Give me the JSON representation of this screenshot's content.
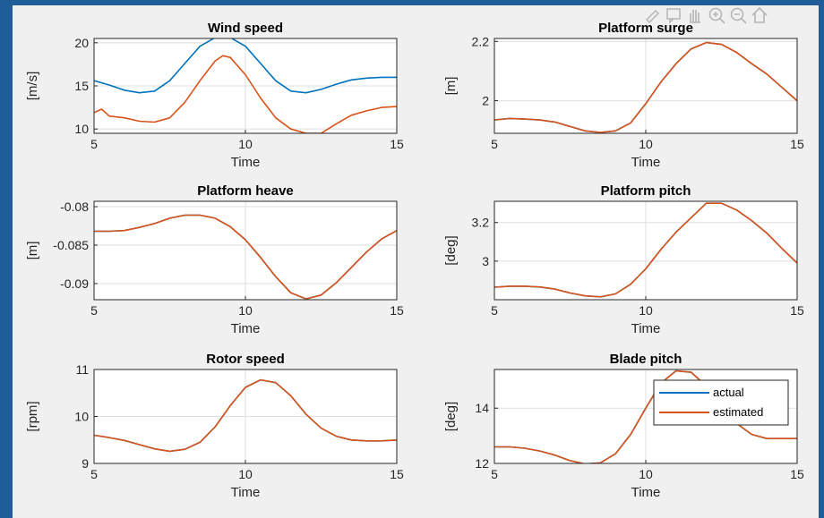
{
  "window": {
    "background": "#1f5d99",
    "figure_background": "#f0f0f0"
  },
  "colors": {
    "actual": "#0072bd",
    "estimated": "#d95319"
  },
  "toolbar": {
    "icons": [
      "brush-icon",
      "data-tip-icon",
      "pan-icon",
      "zoom-in-icon",
      "zoom-out-icon",
      "home-icon"
    ]
  },
  "legend": {
    "location": "northeast of Blade pitch",
    "entries": [
      "actual",
      "estimated"
    ]
  },
  "chart_data": [
    {
      "type": "line",
      "title": "Wind speed",
      "xlabel": "Time",
      "ylabel": "[m/s]",
      "xlim": [
        5,
        15
      ],
      "ylim": [
        9.5,
        20.5
      ],
      "xticks": [
        5,
        10,
        15
      ],
      "yticks": [
        10,
        15,
        20
      ],
      "grid": true,
      "series": [
        {
          "name": "actual",
          "x": [
            5,
            5.5,
            6,
            6.5,
            7,
            7.5,
            8,
            8.5,
            9,
            9.5,
            10,
            10.5,
            11,
            11.5,
            12,
            12.5,
            13,
            13.5,
            14,
            14.5,
            15
          ],
          "values": [
            15.6,
            15.1,
            14.5,
            14.2,
            14.4,
            15.6,
            17.6,
            19.6,
            20.6,
            20.6,
            19.6,
            17.6,
            15.6,
            14.4,
            14.2,
            14.6,
            15.2,
            15.7,
            15.9,
            16.0,
            16.0
          ]
        },
        {
          "name": "estimated",
          "x": [
            5,
            5.25,
            5.5,
            6,
            6.5,
            7,
            7.5,
            8,
            8.5,
            9,
            9.25,
            9.5,
            10,
            10.5,
            11,
            11.5,
            12,
            12.5,
            13,
            13.5,
            14,
            14.5,
            15
          ],
          "values": [
            11.9,
            12.3,
            11.5,
            11.3,
            10.9,
            10.8,
            11.3,
            13.1,
            15.6,
            17.9,
            18.5,
            18.3,
            16.3,
            13.6,
            11.3,
            10.0,
            9.5,
            9.5,
            10.6,
            11.6,
            12.1,
            12.5,
            12.6
          ]
        }
      ]
    },
    {
      "type": "line",
      "title": "Platform surge",
      "xlabel": "Time",
      "ylabel": "[m]",
      "xlim": [
        5,
        15
      ],
      "ylim": [
        1.89,
        2.21
      ],
      "xticks": [
        5,
        10,
        15
      ],
      "yticks": [
        2,
        2.2
      ],
      "grid": true,
      "series": [
        {
          "name": "actual",
          "x": [
            5,
            5.5,
            6,
            6.5,
            7,
            7.5,
            8,
            8.5,
            9,
            9.5,
            10,
            10.5,
            11,
            11.5,
            12,
            12.5,
            13,
            13.5,
            14,
            14.5,
            15
          ],
          "values": [
            1.935,
            1.94,
            1.938,
            1.935,
            1.928,
            1.913,
            1.898,
            1.893,
            1.898,
            1.925,
            1.99,
            2.063,
            2.125,
            2.175,
            2.196,
            2.19,
            2.163,
            2.125,
            2.09,
            2.045,
            2.0
          ]
        },
        {
          "name": "estimated",
          "x": [
            5,
            5.5,
            6,
            6.5,
            7,
            7.5,
            8,
            8.5,
            9,
            9.5,
            10,
            10.5,
            11,
            11.5,
            12,
            12.5,
            13,
            13.5,
            14,
            14.5,
            15
          ],
          "values": [
            1.935,
            1.94,
            1.938,
            1.935,
            1.928,
            1.913,
            1.898,
            1.893,
            1.898,
            1.925,
            1.99,
            2.063,
            2.125,
            2.175,
            2.196,
            2.19,
            2.163,
            2.125,
            2.09,
            2.045,
            2.0
          ]
        }
      ]
    },
    {
      "type": "line",
      "title": "Platform heave",
      "xlabel": "Time",
      "ylabel": "[m]",
      "xlim": [
        5,
        15
      ],
      "ylim": [
        -0.0921,
        -0.0793
      ],
      "xticks": [
        5,
        10,
        15
      ],
      "yticks": [
        -0.08,
        -0.085,
        -0.09
      ],
      "grid": true,
      "series": [
        {
          "name": "actual",
          "x": [
            5,
            5.5,
            6,
            6.5,
            7,
            7.5,
            8,
            8.5,
            9,
            9.5,
            10,
            10.5,
            11,
            11.5,
            12,
            12.5,
            13,
            13.5,
            14,
            14.5,
            15
          ],
          "values": [
            -0.0832,
            -0.0832,
            -0.0831,
            -0.0827,
            -0.0822,
            -0.0815,
            -0.0811,
            -0.0811,
            -0.0815,
            -0.0826,
            -0.0843,
            -0.0866,
            -0.0891,
            -0.0912,
            -0.092,
            -0.0915,
            -0.0899,
            -0.0879,
            -0.0859,
            -0.0842,
            -0.0831
          ]
        },
        {
          "name": "estimated",
          "x": [
            5,
            5.5,
            6,
            6.5,
            7,
            7.5,
            8,
            8.5,
            9,
            9.5,
            10,
            10.5,
            11,
            11.5,
            12,
            12.5,
            13,
            13.5,
            14,
            14.5,
            15
          ],
          "values": [
            -0.0832,
            -0.0832,
            -0.0831,
            -0.0827,
            -0.0822,
            -0.0815,
            -0.0811,
            -0.0811,
            -0.0815,
            -0.0826,
            -0.0843,
            -0.0866,
            -0.0891,
            -0.0912,
            -0.092,
            -0.0915,
            -0.0899,
            -0.0879,
            -0.0859,
            -0.0842,
            -0.0831
          ]
        }
      ]
    },
    {
      "type": "line",
      "title": "Platform pitch",
      "xlabel": "Time",
      "ylabel": "[deg]",
      "xlim": [
        5,
        15
      ],
      "ylim": [
        2.8,
        3.31
      ],
      "xticks": [
        5,
        10,
        15
      ],
      "yticks": [
        3,
        3.2
      ],
      "grid": true,
      "series": [
        {
          "name": "actual",
          "x": [
            5,
            5.5,
            6,
            6.5,
            7,
            7.5,
            8,
            8.5,
            9,
            9.5,
            10,
            10.5,
            11,
            11.5,
            12,
            12.5,
            13,
            13.5,
            14,
            14.5,
            15
          ],
          "values": [
            2.865,
            2.87,
            2.87,
            2.866,
            2.855,
            2.835,
            2.82,
            2.815,
            2.83,
            2.88,
            2.96,
            3.06,
            3.15,
            3.225,
            3.3,
            3.3,
            3.265,
            3.21,
            3.145,
            3.065,
            2.99
          ]
        },
        {
          "name": "estimated",
          "x": [
            5,
            5.5,
            6,
            6.5,
            7,
            7.5,
            8,
            8.5,
            9,
            9.5,
            10,
            10.5,
            11,
            11.5,
            12,
            12.5,
            13,
            13.5,
            14,
            14.5,
            15
          ],
          "values": [
            2.865,
            2.87,
            2.87,
            2.866,
            2.855,
            2.835,
            2.82,
            2.815,
            2.83,
            2.88,
            2.96,
            3.06,
            3.15,
            3.225,
            3.3,
            3.3,
            3.265,
            3.21,
            3.145,
            3.065,
            2.99
          ]
        }
      ]
    },
    {
      "type": "line",
      "title": "Rotor speed",
      "xlabel": "Time",
      "ylabel": "[rpm]",
      "xlim": [
        5,
        15
      ],
      "ylim": [
        9,
        11
      ],
      "xticks": [
        5,
        10,
        15
      ],
      "yticks": [
        9,
        10,
        11
      ],
      "grid": true,
      "series": [
        {
          "name": "actual",
          "x": [
            5,
            5.5,
            6,
            6.5,
            7,
            7.5,
            8,
            8.5,
            9,
            9.5,
            10,
            10.5,
            11,
            11.5,
            12,
            12.5,
            13,
            13.5,
            14,
            14.5,
            15
          ],
          "values": [
            9.6,
            9.55,
            9.49,
            9.4,
            9.31,
            9.26,
            9.3,
            9.45,
            9.78,
            10.23,
            10.62,
            10.78,
            10.72,
            10.44,
            10.05,
            9.75,
            9.58,
            9.5,
            9.48,
            9.48,
            9.5
          ]
        },
        {
          "name": "estimated",
          "x": [
            5,
            5.5,
            6,
            6.5,
            7,
            7.5,
            8,
            8.5,
            9,
            9.5,
            10,
            10.5,
            11,
            11.5,
            12,
            12.5,
            13,
            13.5,
            14,
            14.5,
            15
          ],
          "values": [
            9.6,
            9.55,
            9.49,
            9.4,
            9.31,
            9.26,
            9.3,
            9.45,
            9.78,
            10.23,
            10.62,
            10.78,
            10.72,
            10.44,
            10.05,
            9.75,
            9.58,
            9.5,
            9.48,
            9.48,
            9.5
          ]
        }
      ]
    },
    {
      "type": "line",
      "title": "Blade pitch",
      "xlabel": "Time",
      "ylabel": "[deg]",
      "xlim": [
        5,
        15
      ],
      "ylim": [
        12,
        15.4
      ],
      "xticks": [
        5,
        10,
        15
      ],
      "yticks": [
        12,
        14
      ],
      "grid": true,
      "series": [
        {
          "name": "actual",
          "x": [
            5,
            5.5,
            6,
            6.5,
            7,
            7.5,
            8,
            8.5,
            9,
            9.5,
            10,
            10.5,
            11,
            11.5,
            12,
            12.5,
            13,
            13.5,
            14,
            14.5,
            15
          ],
          "values": [
            12.6,
            12.6,
            12.55,
            12.45,
            12.3,
            12.1,
            11.98,
            12.02,
            12.35,
            13.05,
            14.0,
            14.9,
            15.35,
            15.3,
            14.8,
            14.1,
            13.45,
            13.05,
            12.9,
            12.9,
            12.9
          ]
        },
        {
          "name": "estimated",
          "x": [
            5,
            5.5,
            6,
            6.5,
            7,
            7.5,
            8,
            8.5,
            9,
            9.5,
            10,
            10.5,
            11,
            11.5,
            12,
            12.5,
            13,
            13.5,
            14,
            14.5,
            15
          ],
          "values": [
            12.6,
            12.6,
            12.55,
            12.45,
            12.3,
            12.1,
            11.98,
            12.02,
            12.35,
            13.05,
            14.0,
            14.9,
            15.35,
            15.3,
            14.8,
            14.1,
            13.45,
            13.05,
            12.9,
            12.9,
            12.9
          ]
        }
      ]
    }
  ]
}
